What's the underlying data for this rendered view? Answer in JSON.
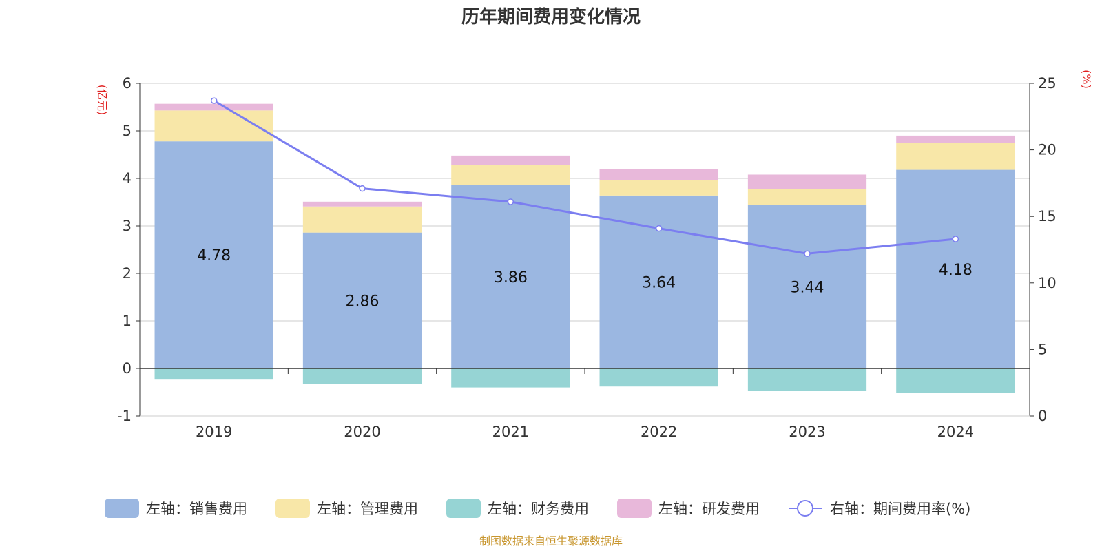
{
  "chart_data": {
    "type": "bar",
    "title": "历年期间费用变化情况",
    "categories": [
      "2019",
      "2020",
      "2021",
      "2022",
      "2023",
      "2024"
    ],
    "stacked": true,
    "left_axis": {
      "unit": "(亿元)",
      "ylim": [
        -1,
        6
      ],
      "ticks": [
        "-1",
        "0",
        "1",
        "2",
        "3",
        "4",
        "5",
        "6"
      ]
    },
    "right_axis": {
      "unit": "(%)",
      "ylim": [
        0,
        25
      ],
      "ticks": [
        "0",
        "5",
        "10",
        "15",
        "20",
        "25"
      ]
    },
    "series": [
      {
        "name": "左轴：销售费用",
        "axis": "left",
        "color": "#9bb7e1",
        "values": [
          4.78,
          2.86,
          3.86,
          3.64,
          3.44,
          4.18
        ],
        "labels": [
          "4.78",
          "2.86",
          "3.86",
          "3.64",
          "3.44",
          "4.18"
        ]
      },
      {
        "name": "左轴：管理费用",
        "axis": "left",
        "color": "#f8e7a8",
        "values": [
          0.65,
          0.55,
          0.43,
          0.33,
          0.33,
          0.56
        ]
      },
      {
        "name": "左轴：财务费用",
        "axis": "left",
        "color": "#96d4d4",
        "values": [
          -0.22,
          -0.32,
          -0.4,
          -0.38,
          -0.47,
          -0.52
        ]
      },
      {
        "name": "左轴：研发费用",
        "axis": "left",
        "color": "#e8b8da",
        "values": [
          0.14,
          0.1,
          0.19,
          0.22,
          0.31,
          0.16
        ]
      },
      {
        "name": "右轴：期间费用率(%)",
        "axis": "right",
        "type": "line",
        "color": "#7b7ef0",
        "values": [
          23.7,
          17.1,
          16.1,
          14.1,
          12.2,
          13.3
        ]
      }
    ],
    "grid": true,
    "legend_position": "bottom"
  },
  "source": {
    "text": "制图数据来自恒生聚源数据库",
    "color": "#c8962e"
  },
  "colors": {
    "axis_unit": "#e02020",
    "grid": "#cccccc",
    "axis": "#333333"
  }
}
